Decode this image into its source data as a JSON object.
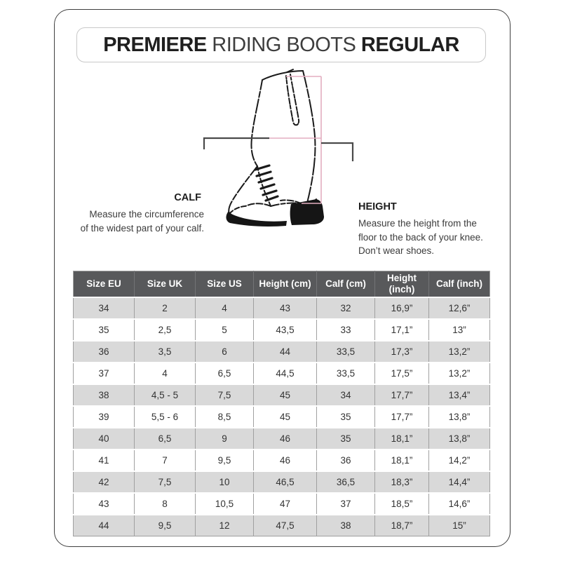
{
  "title": {
    "brand": "PREMIERE",
    "product": " RIDING BOOTS ",
    "variant": "REGULAR"
  },
  "diagram": {
    "calf": {
      "heading": "CALF",
      "line1": "Measure the circumference",
      "line2": "of the widest part of your calf."
    },
    "height": {
      "heading": "HEIGHT",
      "line1": "Measure the height from the",
      "line2": "floor to the back of your knee.",
      "line3": "Don’t wear shoes."
    },
    "boot_icon": "riding-boot-line-art",
    "accent_color": "#E3AEC0",
    "connector_color": "#4A4A4A"
  },
  "table": {
    "header_bg": "#58595B",
    "row_alt_bg": "#D9D9D9",
    "headers": [
      "Size EU",
      "Size UK",
      "Size US",
      "Height (cm)",
      "Calf (cm)",
      "Height (inch)",
      "Calf (inch)"
    ],
    "rows": [
      [
        "34",
        "2",
        "4",
        "43",
        "32",
        "16,9”",
        "12,6”"
      ],
      [
        "35",
        "2,5",
        "5",
        "43,5",
        "33",
        "17,1”",
        "13”"
      ],
      [
        "36",
        "3,5",
        "6",
        "44",
        "33,5",
        "17,3”",
        "13,2”"
      ],
      [
        "37",
        "4",
        "6,5",
        "44,5",
        "33,5",
        "17,5”",
        "13,2”"
      ],
      [
        "38",
        "4,5 - 5",
        "7,5",
        "45",
        "34",
        "17,7”",
        "13,4”"
      ],
      [
        "39",
        "5,5 - 6",
        "8,5",
        "45",
        "35",
        "17,7”",
        "13,8”"
      ],
      [
        "40",
        "6,5",
        "9",
        "46",
        "35",
        "18,1”",
        "13,8”"
      ],
      [
        "41",
        "7",
        "9,5",
        "46",
        "36",
        "18,1”",
        "14,2”"
      ],
      [
        "42",
        "7,5",
        "10",
        "46,5",
        "36,5",
        "18,3”",
        "14,4”"
      ],
      [
        "43",
        "8",
        "10,5",
        "47",
        "37",
        "18,5”",
        "14,6”"
      ],
      [
        "44",
        "9,5",
        "12",
        "47,5",
        "38",
        "18,7”",
        "15”"
      ]
    ]
  }
}
